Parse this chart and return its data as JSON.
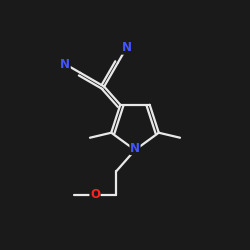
{
  "bg_color": "#1a1a1a",
  "bond_color": "#e8e8e8",
  "atom_colors": {
    "N": "#4455ff",
    "O": "#ff2222",
    "C": "#e8e8e8"
  },
  "bond_width": 1.6,
  "font_size_atom": 8.5,
  "title": ""
}
